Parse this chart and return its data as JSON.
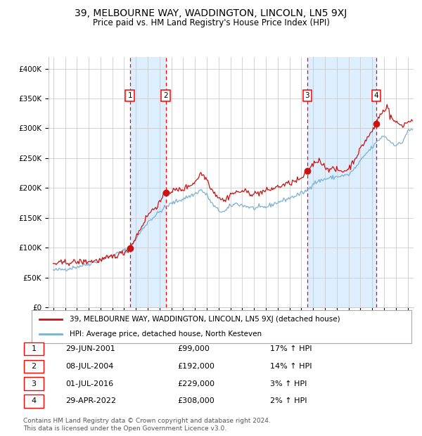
{
  "title": "39, MELBOURNE WAY, WADDINGTON, LINCOLN, LN5 9XJ",
  "subtitle": "Price paid vs. HM Land Registry's House Price Index (HPI)",
  "legend_line1": "39, MELBOURNE WAY, WADDINGTON, LINCOLN, LN5 9XJ (detached house)",
  "legend_line2": "HPI: Average price, detached house, North Kesteven",
  "transactions": [
    {
      "num": 1,
      "date": "29-JUN-2001",
      "price": 99000,
      "pct": "17%",
      "dir": "↑",
      "x_year": 2001.49
    },
    {
      "num": 2,
      "date": "08-JUL-2004",
      "price": 192000,
      "pct": "14%",
      "dir": "↑",
      "x_year": 2004.52
    },
    {
      "num": 3,
      "date": "01-JUL-2016",
      "price": 229000,
      "pct": "3%",
      "dir": "↑",
      "x_year": 2016.5
    },
    {
      "num": 4,
      "date": "29-APR-2022",
      "price": 308000,
      "pct": "2%",
      "dir": "↑",
      "x_year": 2022.33
    }
  ],
  "hpi_color": "#7ab0d4",
  "price_color": "#cc1111",
  "shade_color": "#ddeeff",
  "grid_color": "#cccccc",
  "bg_color": "#ffffff",
  "ylim": [
    0,
    420000
  ],
  "ytick_max": 400000,
  "ytick_step": 50000,
  "xlim_start": 1994.6,
  "xlim_end": 2025.5,
  "hpi_control_points": [
    [
      1995.0,
      62000
    ],
    [
      1996.0,
      64000
    ],
    [
      1997.0,
      68000
    ],
    [
      1998.0,
      73000
    ],
    [
      1999.0,
      79000
    ],
    [
      2000.0,
      87000
    ],
    [
      2001.0,
      95000
    ],
    [
      2001.5,
      99000
    ],
    [
      2002.0,
      115000
    ],
    [
      2003.0,
      143000
    ],
    [
      2004.0,
      160000
    ],
    [
      2004.5,
      168000
    ],
    [
      2005.0,
      174000
    ],
    [
      2006.0,
      182000
    ],
    [
      2007.0,
      190000
    ],
    [
      2007.5,
      197000
    ],
    [
      2008.0,
      188000
    ],
    [
      2008.5,
      172000
    ],
    [
      2009.0,
      162000
    ],
    [
      2009.5,
      160000
    ],
    [
      2010.0,
      170000
    ],
    [
      2010.5,
      174000
    ],
    [
      2011.0,
      171000
    ],
    [
      2012.0,
      166000
    ],
    [
      2013.0,
      168000
    ],
    [
      2014.0,
      176000
    ],
    [
      2015.0,
      183000
    ],
    [
      2016.0,
      191000
    ],
    [
      2016.5,
      196000
    ],
    [
      2017.0,
      208000
    ],
    [
      2018.0,
      215000
    ],
    [
      2019.0,
      219000
    ],
    [
      2020.0,
      222000
    ],
    [
      2020.5,
      232000
    ],
    [
      2021.0,
      245000
    ],
    [
      2021.5,
      258000
    ],
    [
      2022.0,
      268000
    ],
    [
      2022.33,
      275000
    ],
    [
      2022.5,
      280000
    ],
    [
      2023.0,
      288000
    ],
    [
      2023.5,
      278000
    ],
    [
      2024.0,
      272000
    ],
    [
      2024.5,
      275000
    ],
    [
      2025.0,
      295000
    ],
    [
      2025.4,
      298000
    ]
  ],
  "price_control_points": [
    [
      1995.0,
      73000
    ],
    [
      1996.0,
      75000
    ],
    [
      1997.0,
      76000
    ],
    [
      1998.0,
      77000
    ],
    [
      1999.0,
      79000
    ],
    [
      2000.0,
      85000
    ],
    [
      2001.0,
      92000
    ],
    [
      2001.49,
      99000
    ],
    [
      2002.0,
      118000
    ],
    [
      2003.0,
      155000
    ],
    [
      2004.0,
      175000
    ],
    [
      2004.52,
      192000
    ],
    [
      2005.0,
      195000
    ],
    [
      2006.0,
      198000
    ],
    [
      2007.0,
      210000
    ],
    [
      2007.5,
      225000
    ],
    [
      2008.0,
      215000
    ],
    [
      2008.5,
      195000
    ],
    [
      2009.0,
      185000
    ],
    [
      2009.5,
      178000
    ],
    [
      2010.0,
      190000
    ],
    [
      2011.0,
      195000
    ],
    [
      2012.0,
      190000
    ],
    [
      2013.0,
      195000
    ],
    [
      2014.0,
      202000
    ],
    [
      2015.0,
      208000
    ],
    [
      2016.0,
      215000
    ],
    [
      2016.5,
      229000
    ],
    [
      2017.0,
      240000
    ],
    [
      2017.5,
      248000
    ],
    [
      2018.0,
      235000
    ],
    [
      2018.5,
      232000
    ],
    [
      2019.0,
      230000
    ],
    [
      2019.5,
      228000
    ],
    [
      2020.0,
      232000
    ],
    [
      2020.5,
      248000
    ],
    [
      2021.0,
      265000
    ],
    [
      2021.5,
      282000
    ],
    [
      2022.0,
      295000
    ],
    [
      2022.33,
      308000
    ],
    [
      2022.5,
      318000
    ],
    [
      2023.0,
      330000
    ],
    [
      2023.3,
      340000
    ],
    [
      2023.5,
      320000
    ],
    [
      2024.0,
      310000
    ],
    [
      2024.5,
      305000
    ],
    [
      2025.0,
      310000
    ],
    [
      2025.4,
      315000
    ]
  ],
  "footnote1": "Contains HM Land Registry data © Crown copyright and database right 2024.",
  "footnote2": "This data is licensed under the Open Government Licence v3.0."
}
